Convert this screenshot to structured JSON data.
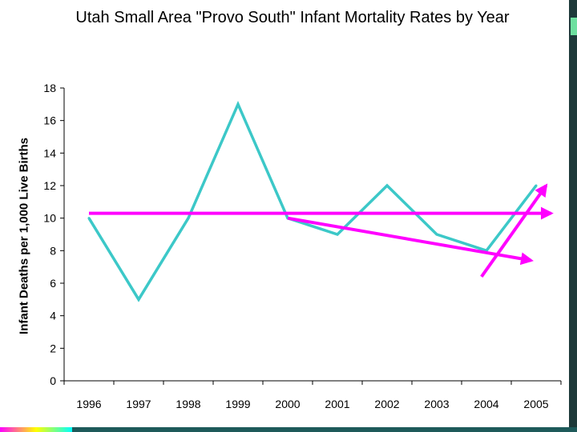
{
  "chart_data": {
    "type": "line",
    "title": "Utah Small Area \"Provo South\" Infant Mortality Rates by Year",
    "ylabel": "Infant Deaths per 1,000 Live Births",
    "xlabel": "",
    "categories": [
      "1996",
      "1997",
      "1998",
      "1999",
      "2000",
      "2001",
      "2002",
      "2003",
      "2004",
      "2005"
    ],
    "series": [
      {
        "values": [
          10,
          5,
          10,
          17,
          10,
          9,
          12,
          9,
          8,
          12
        ],
        "color": "#3cc8c8"
      }
    ],
    "ylim": [
      0,
      18
    ],
    "yticks": [
      0,
      2,
      4,
      6,
      8,
      10,
      12,
      14,
      16,
      18
    ],
    "grid": false,
    "trend_arrows": [
      {
        "from": [
          1996,
          10.3
        ],
        "to": [
          2005.3,
          10.3
        ],
        "color": "#ff00ff"
      },
      {
        "from": [
          2000,
          10.0
        ],
        "to": [
          2004.9,
          7.4
        ],
        "color": "#ff00ff"
      },
      {
        "from": [
          2003.9,
          6.4
        ],
        "to": [
          2005.2,
          12.0
        ],
        "color": "#ff00ff"
      }
    ]
  }
}
